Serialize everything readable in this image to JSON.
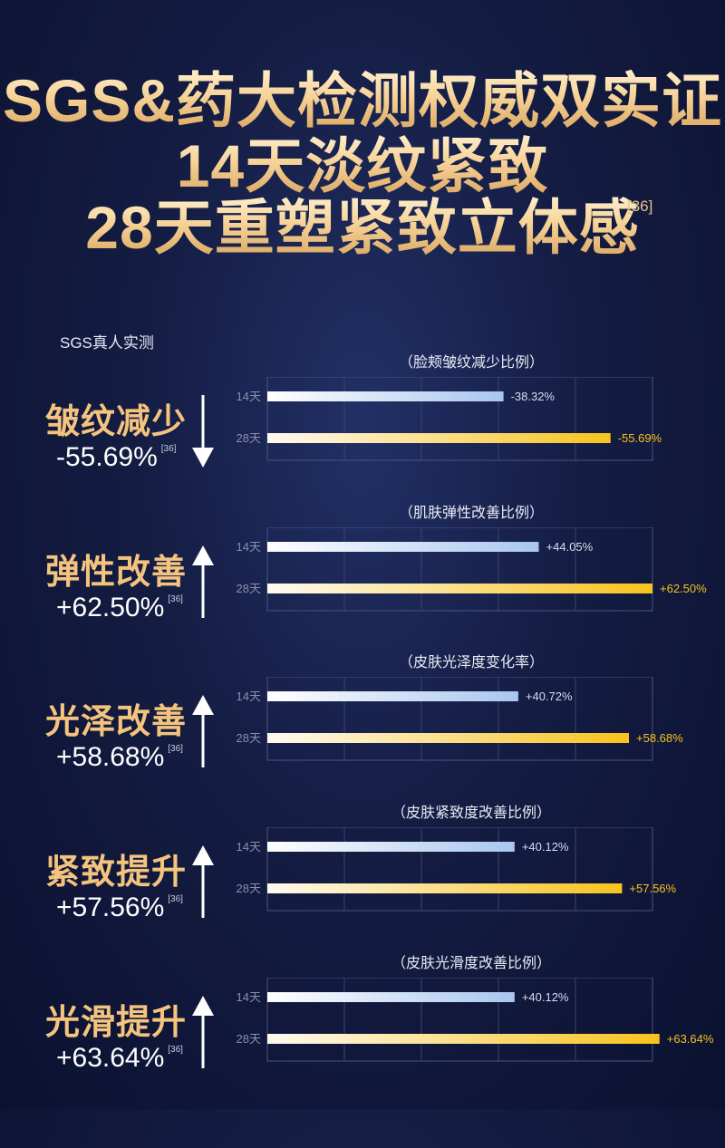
{
  "headline": {
    "line1": "SGS&药大检测权威双实证",
    "line2": "14天淡纹紧致",
    "line3": "28天重塑紧致立体感",
    "ref": "[36]"
  },
  "section_label": "SGS真人实测",
  "colors": {
    "gold": "#f4c47e",
    "bar_14": "#a9c6ef",
    "bar_28": "#f7c31c",
    "value_14": "#d5def2",
    "value_28": "#f7c31c",
    "background": "#141c42"
  },
  "metrics": [
    {
      "name": "皱纹减少",
      "value": "-55.69%",
      "ref": "[36]",
      "direction": "down",
      "arrow_icon": "arrow-down-icon"
    },
    {
      "name": "弹性改善",
      "value": "+62.50%",
      "ref": "[36]",
      "direction": "up",
      "arrow_icon": "arrow-up-icon"
    },
    {
      "name": "光泽改善",
      "value": "+58.68%",
      "ref": "[36]",
      "direction": "up",
      "arrow_icon": "arrow-up-icon"
    },
    {
      "name": "紧致提升",
      "value": "+57.56%",
      "ref": "[36]",
      "direction": "up",
      "arrow_icon": "arrow-up-icon"
    },
    {
      "name": "光滑提升",
      "value": "+63.64%",
      "ref": "[36]",
      "direction": "up",
      "arrow_icon": "arrow-up-icon"
    }
  ],
  "chart_data": [
    {
      "type": "bar",
      "title": "（脸颊皱纹减少比例）",
      "categories": [
        "14天",
        "28天"
      ],
      "values": [
        38.32,
        55.69
      ],
      "labels": [
        "-38.32%",
        "-55.69%"
      ],
      "xlim": [
        0,
        62.5
      ],
      "grid": true
    },
    {
      "type": "bar",
      "title": "（肌肤弹性改善比例）",
      "categories": [
        "14天",
        "28天"
      ],
      "values": [
        44.05,
        62.5
      ],
      "labels": [
        "+44.05%",
        "+62.50%"
      ],
      "xlim": [
        0,
        62.5
      ],
      "grid": true
    },
    {
      "type": "bar",
      "title": "（皮肤光泽度变化率）",
      "categories": [
        "14天",
        "28天"
      ],
      "values": [
        40.72,
        58.68
      ],
      "labels": [
        "+40.72%",
        "+58.68%"
      ],
      "xlim": [
        0,
        62.5
      ],
      "grid": true
    },
    {
      "type": "bar",
      "title": "（皮肤紧致度改善比例）",
      "categories": [
        "14天",
        "28天"
      ],
      "values": [
        40.12,
        57.56
      ],
      "labels": [
        "+40.12%",
        "+57.56%"
      ],
      "xlim": [
        0,
        62.5
      ],
      "grid": true
    },
    {
      "type": "bar",
      "title": "（皮肤光滑度改善比例）",
      "categories": [
        "14天",
        "28天"
      ],
      "values": [
        40.12,
        63.64
      ],
      "labels": [
        "+40.12%",
        "+63.64%"
      ],
      "xlim": [
        0,
        62.5
      ],
      "grid": true
    }
  ]
}
